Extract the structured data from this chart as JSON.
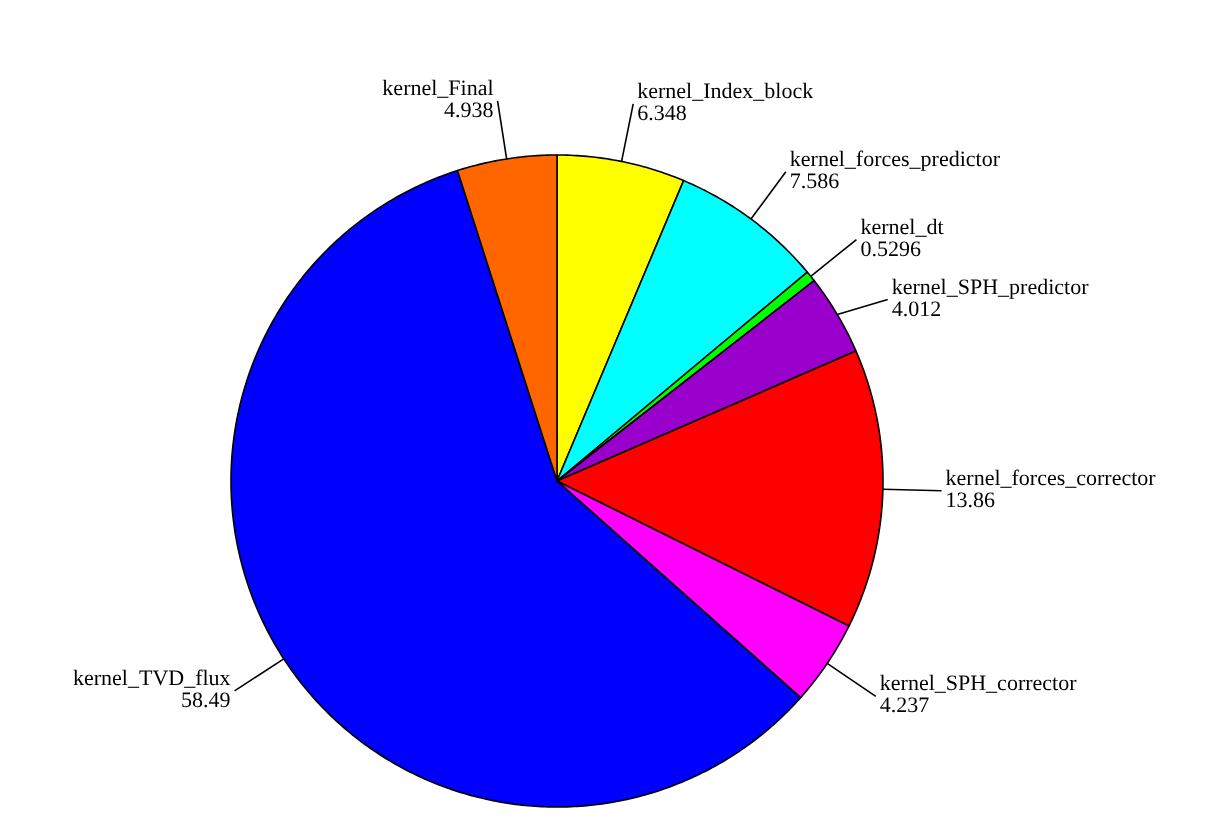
{
  "chart_data": {
    "type": "pie",
    "categories": [
      "kernel_Index_block",
      "kernel_forces_predictor",
      "kernel_dt",
      "kernel_SPH_predictor",
      "kernel_forces_corrector",
      "kernel_SPH_corrector",
      "kernel_TVD_flux",
      "kernel_Final"
    ],
    "values": [
      6.348,
      7.586,
      0.5296,
      4.012,
      13.86,
      4.237,
      58.49,
      4.938
    ],
    "colors": [
      "#ffff00",
      "#00ffff",
      "#00ff00",
      "#9900cc",
      "#ff0000",
      "#ff00ff",
      "#0000ff",
      "#ff6600"
    ],
    "data_labels": true
  }
}
